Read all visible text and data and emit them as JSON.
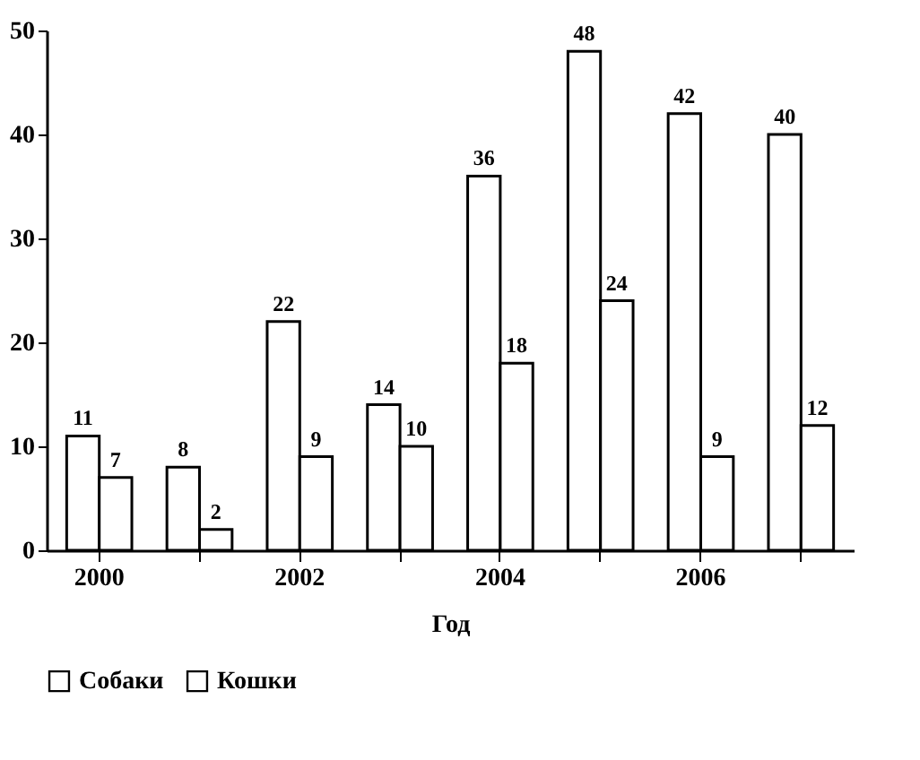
{
  "chart_data": {
    "type": "bar",
    "xlabel": "Год",
    "categories": [
      "2000",
      null,
      "2002",
      null,
      "2004",
      null,
      "2006",
      null
    ],
    "series": [
      {
        "name": "Собаки",
        "color": "#ffffff",
        "values": [
          11,
          8,
          22,
          14,
          36,
          48,
          42,
          40
        ]
      },
      {
        "name": "Кошки",
        "color": "#ffffff",
        "values": [
          7,
          2,
          9,
          10,
          18,
          24,
          9,
          12
        ]
      }
    ],
    "ylim": [
      0,
      50
    ],
    "yticks": [
      0,
      10,
      20,
      30,
      40,
      50
    ],
    "grid": false,
    "legend": "bottom",
    "data_labels": true
  }
}
